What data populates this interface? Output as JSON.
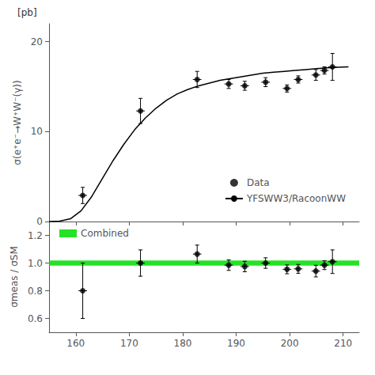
{
  "chart_data": [
    {
      "type": "line",
      "y_label": "σ(e⁺e⁻→W⁺W⁻(γ))",
      "annotation": "[pb]",
      "xlim": [
        155,
        213
      ],
      "ylim": [
        0,
        22
      ],
      "xticks": [
        160,
        170,
        180,
        190,
        200,
        210
      ],
      "yticks": [
        0,
        10,
        20
      ],
      "tick_labels": "y",
      "grid": false,
      "legend": "lower right",
      "series": [
        {
          "name": "Data",
          "type": "scatter",
          "color": "black",
          "marker": "circle",
          "x": [
            161.3,
            172.1,
            182.7,
            188.6,
            191.6,
            195.5,
            199.5,
            201.6,
            204.9,
            206.5,
            208.0
          ],
          "values": [
            2.9,
            12.3,
            15.8,
            15.3,
            15.1,
            15.5,
            14.8,
            15.8,
            16.3,
            16.8,
            17.2
          ],
          "yerr_lo": [
            0.9,
            1.4,
            0.9,
            0.5,
            0.5,
            0.5,
            0.4,
            0.4,
            0.6,
            0.4,
            1.5
          ],
          "yerr_hi": [
            0.9,
            1.4,
            0.9,
            0.5,
            0.5,
            0.5,
            0.4,
            0.4,
            0.6,
            0.4,
            1.5
          ],
          "xerr": [
            0.8,
            0.8,
            0.8,
            0.8,
            0.8,
            0.8,
            0.8,
            0.8,
            0.8,
            0.8,
            0.8
          ]
        },
        {
          "name": "YFSWW3/RacoonWW",
          "type": "line",
          "color": "black",
          "line_style": "solid",
          "x": [
            155,
            157,
            159,
            161,
            163,
            165,
            167,
            169,
            171,
            173,
            175,
            177,
            179,
            181,
            183,
            185,
            187,
            189,
            191,
            193,
            195,
            197,
            199,
            201,
            203,
            205,
            207,
            209,
            211
          ],
          "values": [
            0.0,
            0.05,
            0.3,
            1.2,
            2.8,
            4.8,
            6.8,
            8.6,
            10.2,
            11.5,
            12.6,
            13.5,
            14.2,
            14.7,
            15.1,
            15.4,
            15.7,
            15.9,
            16.1,
            16.3,
            16.5,
            16.6,
            16.7,
            16.8,
            16.9,
            17.0,
            17.1,
            17.15,
            17.2
          ]
        }
      ]
    },
    {
      "type": "scatter",
      "y_label": "σmeas / σSM",
      "xlim": [
        155,
        213
      ],
      "ylim": [
        0.5,
        1.3
      ],
      "xticks": [
        160,
        170,
        180,
        190,
        200,
        210
      ],
      "yticks": [
        0.6,
        0.8,
        {
          "value": 1.0,
          "label": "1.0"
        },
        1.2
      ],
      "tick_labels": true,
      "grid": false,
      "legend": "upper left",
      "series": [
        {
          "name": "Combined",
          "type": "band",
          "color": "#00dd00",
          "values": [
            0.982,
            1.018
          ]
        },
        {
          "type": "scatter",
          "color": "black",
          "marker": "circle",
          "x": [
            161.3,
            172.1,
            182.7,
            188.6,
            191.6,
            195.5,
            199.5,
            201.6,
            204.9,
            206.5,
            208.0
          ],
          "values": [
            0.8,
            1.0,
            1.065,
            0.985,
            0.975,
            1.0,
            0.955,
            0.958,
            0.942,
            0.985,
            1.01
          ],
          "yerr_lo": [
            0.2,
            0.095,
            0.065,
            0.038,
            0.038,
            0.038,
            0.032,
            0.032,
            0.042,
            0.032,
            0.085
          ],
          "yerr_hi": [
            0.2,
            0.095,
            0.065,
            0.038,
            0.038,
            0.038,
            0.032,
            0.032,
            0.042,
            0.032,
            0.085
          ],
          "xerr": [
            0.8,
            0.8,
            0.8,
            0.8,
            0.8,
            0.8,
            0.8,
            0.8,
            0.8,
            0.8,
            0.8
          ]
        }
      ]
    }
  ]
}
